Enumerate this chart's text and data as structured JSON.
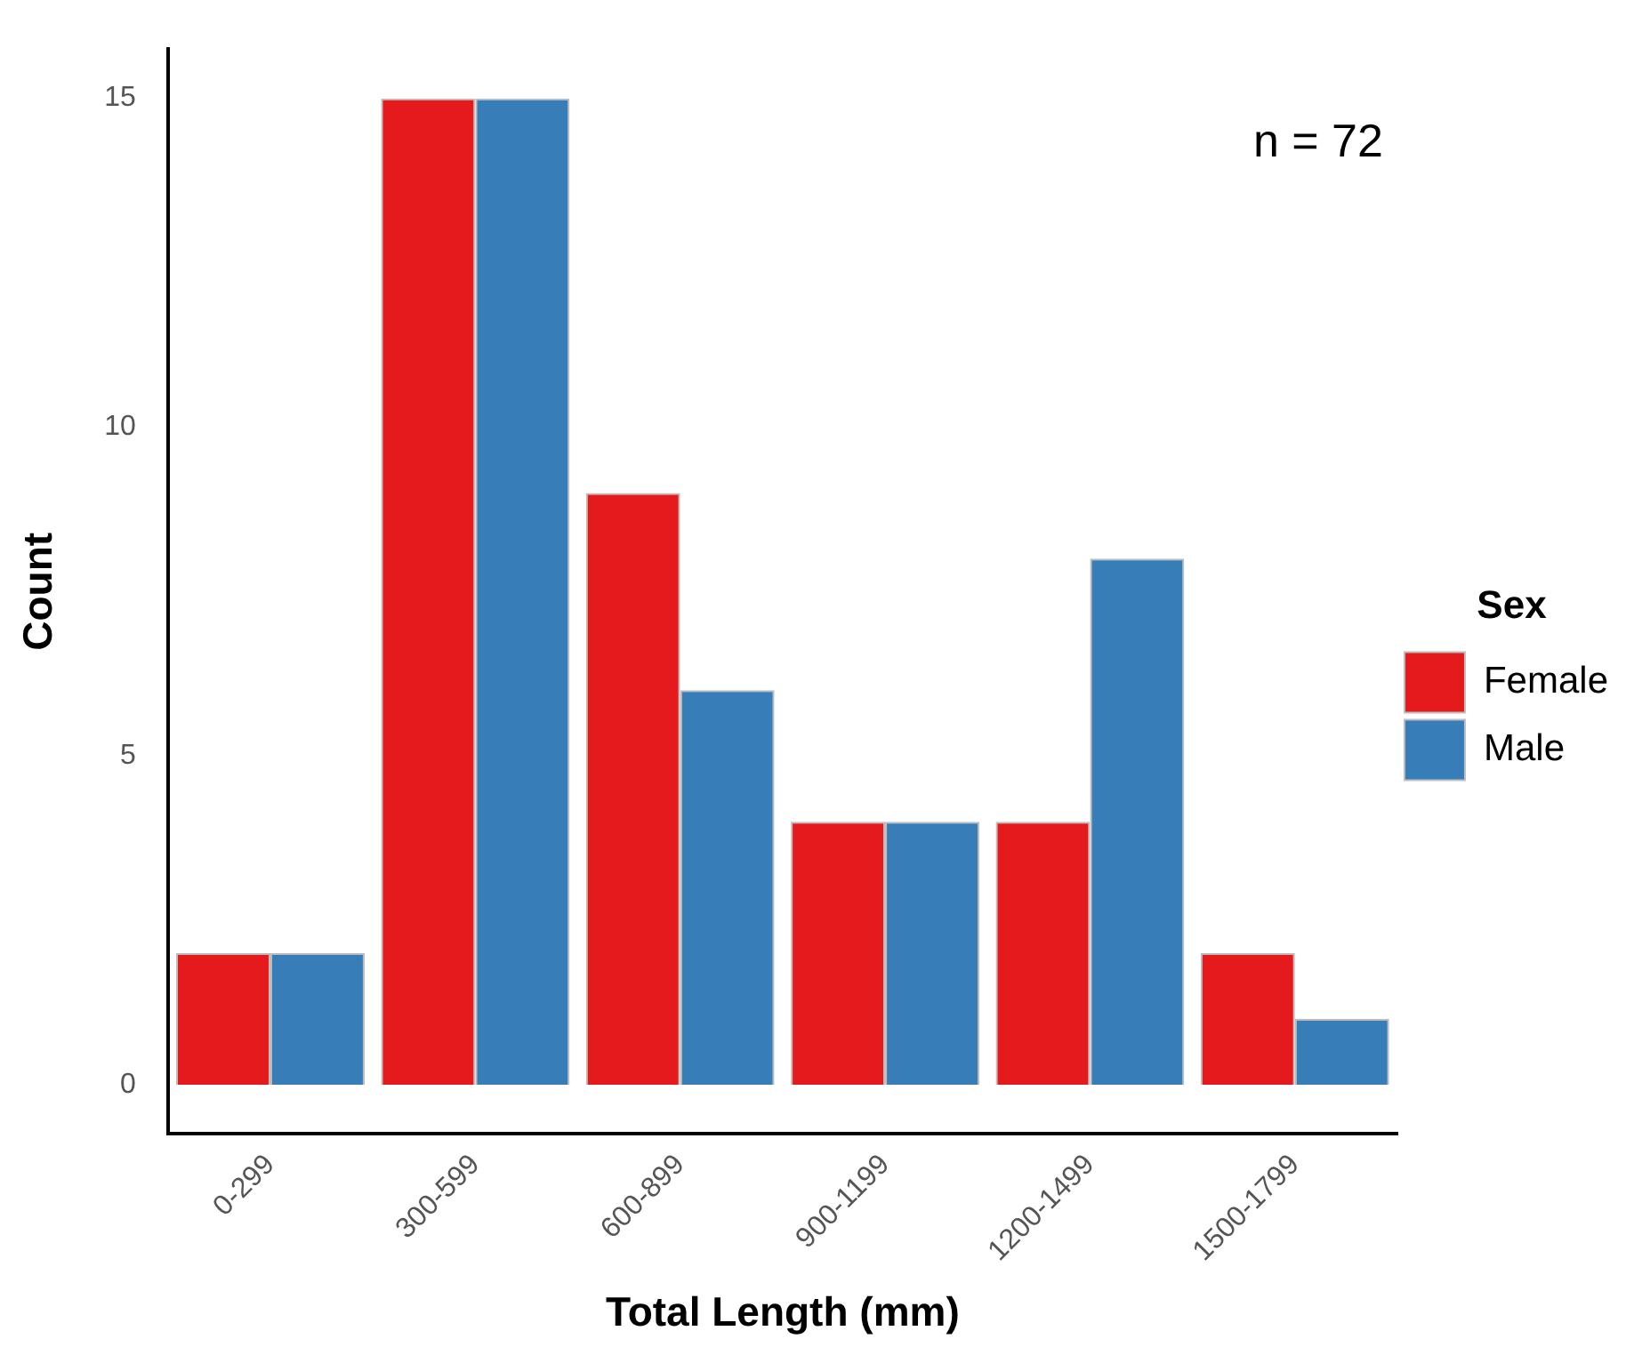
{
  "chart_data": {
    "type": "bar",
    "xlabel": "Total Length (mm)",
    "ylabel": "Count",
    "legend_title": "Sex",
    "categories": [
      "0-299",
      "300-599",
      "600-899",
      "900-1199",
      "1200-1499",
      "1500-1799"
    ],
    "series": [
      {
        "name": "Female",
        "color": "#e41a1c",
        "values": [
          2,
          15,
          9,
          4,
          4,
          2
        ]
      },
      {
        "name": "Male",
        "color": "#377eb8",
        "values": [
          2,
          15,
          6,
          4,
          8,
          1
        ]
      }
    ],
    "ylim": [
      -0.75,
      15.75
    ],
    "yticks": [
      0,
      5,
      10,
      15
    ],
    "grid": false,
    "legend": "right",
    "annotations": [
      "n = 72"
    ]
  }
}
